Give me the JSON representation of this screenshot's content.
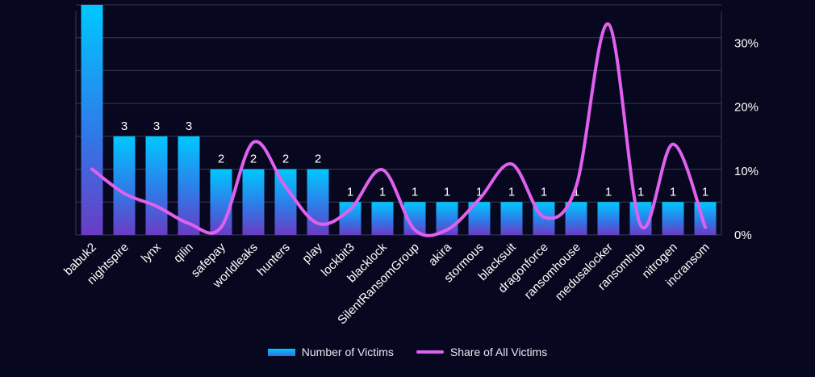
{
  "chart_data": {
    "type": "bar",
    "categories": [
      "babuk2",
      "nightspire",
      "lynx",
      "qilin",
      "safepay",
      "worldleaks",
      "hunters",
      "play",
      "lockbit3",
      "blacklock",
      "SilentRansomGroup",
      "akira",
      "stormous",
      "blacksuit",
      "dragonforce",
      "ransomhouse",
      "medusalocker",
      "ransomhub",
      "nitrogen",
      "incransom"
    ],
    "series": [
      {
        "name": "Number of Victims",
        "type": "bar",
        "axis": "left",
        "values": [
          7,
          3,
          3,
          3,
          2,
          2,
          2,
          2,
          1,
          1,
          1,
          1,
          1,
          1,
          1,
          1,
          1,
          1,
          1,
          1
        ]
      },
      {
        "name": "Share of All Victims",
        "type": "line",
        "axis": "right",
        "smooth": true,
        "values": [
          10.3,
          6.5,
          4.5,
          1.8,
          1.2,
          14.5,
          7.5,
          1.8,
          4.0,
          10.2,
          0.8,
          0.8,
          5.6,
          11.1,
          2.8,
          7.6,
          33.0,
          1.5,
          14.2,
          1.2
        ]
      }
    ],
    "left_ylim": [
      0,
      7
    ],
    "right_ylim": [
      0,
      35
    ],
    "right_ticks": [
      "0%",
      "10%",
      "20%",
      "30%"
    ],
    "right_tick_values": [
      0,
      10,
      20,
      30
    ],
    "grid": true,
    "legend": "bottom",
    "colors": {
      "bar_top": "#00c8ff",
      "bar_bottom": "#6a3cc4",
      "line": "#e060f0",
      "grid": "#3a3a55",
      "text": "#ffffff"
    }
  }
}
